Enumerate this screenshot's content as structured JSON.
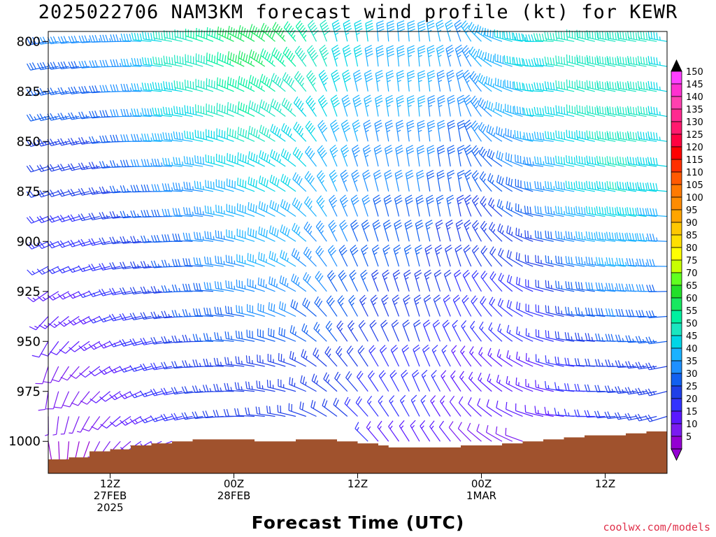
{
  "title": "2025022706 NAM3KM forecast wind profile (kt) for KEWR",
  "credit": "coolwx.com/models",
  "chart_data": {
    "type": "wind_barb_profile",
    "title": "2025022706 NAM3KM forecast wind profile (kt) for KEWR",
    "xlabel": "Forecast Time (UTC)",
    "ylabel": "",
    "units": "kt",
    "y_axis": {
      "ticks": [
        800,
        825,
        850,
        875,
        900,
        925,
        950,
        975,
        1000
      ],
      "range": [
        1016,
        795
      ],
      "inverted": true
    },
    "x_axis": {
      "start_hour_offset": 0,
      "ticks": [
        {
          "hour": 6,
          "lines": [
            "12Z",
            "27FEB",
            "2025"
          ]
        },
        {
          "hour": 18,
          "lines": [
            "00Z",
            "28FEB"
          ]
        },
        {
          "hour": 30,
          "lines": [
            "12Z"
          ]
        },
        {
          "hour": 42,
          "lines": [
            "00Z",
            "1MAR"
          ]
        },
        {
          "hour": 54,
          "lines": [
            "12Z"
          ]
        }
      ],
      "range": [
        0,
        60
      ]
    },
    "colorbar": {
      "levels": [
        5,
        10,
        15,
        20,
        25,
        30,
        35,
        40,
        45,
        50,
        55,
        60,
        65,
        70,
        75,
        80,
        85,
        90,
        95,
        100,
        105,
        110,
        115,
        120,
        125,
        130,
        135,
        140,
        145,
        150
      ],
      "colors": [
        "#9400d3",
        "#7a1bf0",
        "#5a18ff",
        "#3333ff",
        "#1f3fe8",
        "#1160f0",
        "#1e90ff",
        "#1ab2ff",
        "#00d6e6",
        "#1ae6c0",
        "#00f0a0",
        "#18e860",
        "#23e02a",
        "#60ff20",
        "#c8ff00",
        "#ffff00",
        "#ffe000",
        "#ffc800",
        "#ffa500",
        "#ff8c00",
        "#ff7a00",
        "#ff5a00",
        "#ff3000",
        "#ff0000",
        "#ff0040",
        "#ff1a6e",
        "#ff2a90",
        "#ff40b0",
        "#ff30d0",
        "#ff40ff"
      ]
    },
    "surface_pressure": [
      {
        "hour": 0,
        "p": 1009
      },
      {
        "hour": 2,
        "p": 1008
      },
      {
        "hour": 4,
        "p": 1005
      },
      {
        "hour": 6,
        "p": 1004
      },
      {
        "hour": 8,
        "p": 1002
      },
      {
        "hour": 10,
        "p": 1001
      },
      {
        "hour": 12,
        "p": 1000
      },
      {
        "hour": 14,
        "p": 999
      },
      {
        "hour": 16,
        "p": 999
      },
      {
        "hour": 18,
        "p": 999
      },
      {
        "hour": 20,
        "p": 1000
      },
      {
        "hour": 22,
        "p": 1000
      },
      {
        "hour": 24,
        "p": 999
      },
      {
        "hour": 26,
        "p": 999
      },
      {
        "hour": 28,
        "p": 1000
      },
      {
        "hour": 30,
        "p": 1001
      },
      {
        "hour": 32,
        "p": 1002
      },
      {
        "hour": 33,
        "p": 1003
      },
      {
        "hour": 34,
        "p": 1003
      },
      {
        "hour": 36,
        "p": 1003
      },
      {
        "hour": 38,
        "p": 1003
      },
      {
        "hour": 40,
        "p": 1002
      },
      {
        "hour": 42,
        "p": 1002
      },
      {
        "hour": 44,
        "p": 1001
      },
      {
        "hour": 46,
        "p": 1000
      },
      {
        "hour": 48,
        "p": 999
      },
      {
        "hour": 50,
        "p": 998
      },
      {
        "hour": 52,
        "p": 997
      },
      {
        "hour": 54,
        "p": 997
      },
      {
        "hour": 56,
        "p": 996
      },
      {
        "hour": 58,
        "p": 995
      },
      {
        "hour": 60,
        "p": 994
      }
    ],
    "wind_profile": {
      "hours_step": 1,
      "levels_step": 12.5,
      "speed_kt_by_hour_low_to_high": [
        [
          5,
          10,
          15,
          20,
          25,
          30
        ],
        [
          5,
          10,
          15,
          20,
          25,
          32
        ],
        [
          10,
          15,
          20,
          25,
          30,
          34
        ],
        [
          15,
          20,
          25,
          30,
          40,
          48
        ],
        [
          20,
          25,
          30,
          35,
          45,
          52
        ],
        [
          20,
          25,
          35,
          40,
          50,
          60
        ],
        [
          20,
          25,
          35,
          40,
          45,
          55
        ],
        [
          20,
          25,
          30,
          35,
          40,
          45
        ],
        [
          15,
          20,
          25,
          30,
          35,
          40
        ],
        [
          15,
          20,
          25,
          30,
          35,
          38
        ],
        [
          10,
          15,
          20,
          25,
          30,
          35
        ],
        [
          10,
          15,
          20,
          25,
          35,
          40
        ],
        [
          10,
          15,
          20,
          30,
          40,
          45
        ],
        [
          15,
          20,
          30,
          40,
          45,
          50
        ],
        [
          20,
          25,
          35,
          45,
          50,
          48
        ],
        [
          20,
          25,
          30,
          40,
          45,
          45
        ]
      ],
      "direction_deg_by_hour_low_to_high": [
        [
          170,
          200,
          240,
          250,
          255,
          260
        ],
        [
          200,
          230,
          250,
          255,
          260,
          265
        ],
        [
          230,
          250,
          260,
          265,
          270,
          270
        ],
        [
          250,
          260,
          265,
          270,
          275,
          280
        ],
        [
          260,
          270,
          275,
          280,
          285,
          290
        ],
        [
          270,
          280,
          285,
          290,
          295,
          300
        ],
        [
          280,
          290,
          300,
          305,
          310,
          320
        ],
        [
          300,
          320,
          330,
          335,
          340,
          345
        ],
        [
          320,
          330,
          340,
          345,
          350,
          355
        ],
        [
          330,
          340,
          345,
          350,
          355,
          355
        ],
        [
          320,
          330,
          340,
          350,
          350,
          340
        ],
        [
          300,
          310,
          320,
          310,
          300,
          290
        ],
        [
          280,
          290,
          285,
          280,
          275,
          270
        ],
        [
          270,
          275,
          280,
          280,
          285,
          285
        ],
        [
          260,
          270,
          275,
          280,
          280,
          280
        ],
        [
          250,
          260,
          270,
          275,
          280,
          280
        ]
      ]
    }
  }
}
